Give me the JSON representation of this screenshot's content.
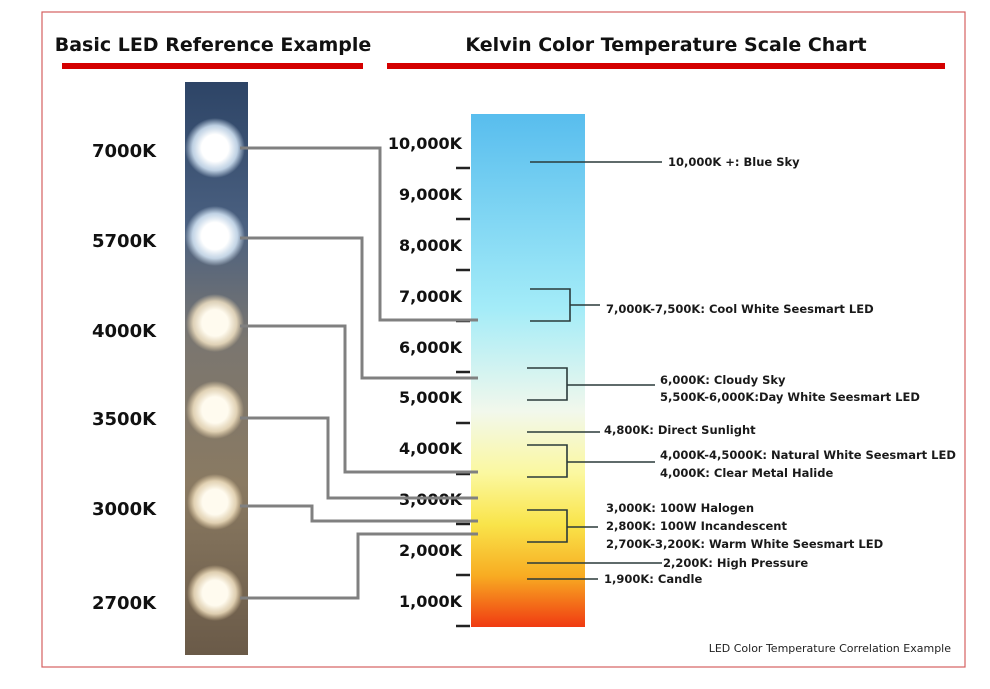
{
  "left_title": "Basic LED Reference Example",
  "right_title": "Kelvin Color Temperature Scale Chart",
  "accent_color": "#d40000",
  "led_labels": [
    "7000K",
    "5700K",
    "4000K",
    "3500K",
    "3000K",
    "2700K"
  ],
  "scale_labels": [
    "10,000K",
    "9,000K",
    "8,000K",
    "7,000K",
    "6,000K",
    "5,000K",
    "4,000K",
    "3,000K",
    "2,000K",
    "1,000K"
  ],
  "annotations": {
    "blue_sky": "10,000K +: Blue Sky",
    "cool_white": "7,000K-7,500K: Cool White Seesmart LED",
    "cloudy_sky": "6,000K: Cloudy Sky",
    "day_white": "5,500K-6,000K:Day White Seesmart LED",
    "direct_sunlight": "4,800K: Direct Sunlight",
    "natural_white": "4,000K-4,5000K: Natural White Seesmart LED",
    "metal_halide": "4,000K: Clear Metal Halide",
    "halogen": "3,000K: 100W Halogen",
    "incandescent": "2,800K: 100W Incandescent",
    "warm_white": "2,700K-3,200K: Warm White Seesmart LED",
    "high_pressure": "2,200K: High Pressure",
    "candle": "1,900K: Candle"
  },
  "caption": "LED Color Temperature Correlation Example"
}
